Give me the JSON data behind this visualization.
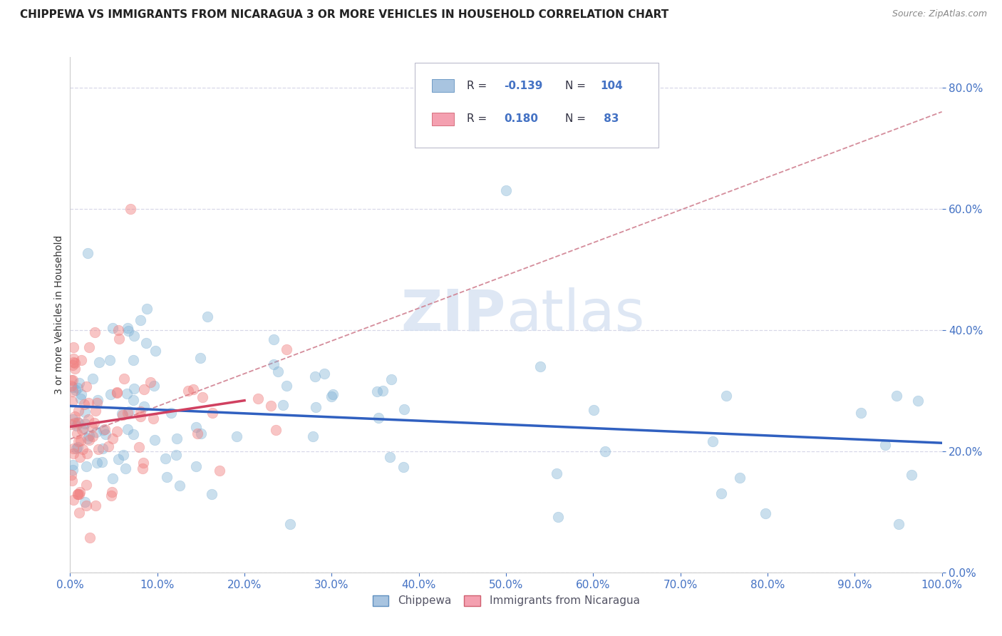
{
  "title": "CHIPPEWA VS IMMIGRANTS FROM NICARAGUA 3 OR MORE VEHICLES IN HOUSEHOLD CORRELATION CHART",
  "source_text": "Source: ZipAtlas.com",
  "ylabel": "3 or more Vehicles in Household",
  "watermark": "ZIPatlas",
  "blue_scatter_color": "#7bafd4",
  "pink_scatter_color": "#f08080",
  "blue_line_color": "#3060c0",
  "pink_line_color": "#d04060",
  "dashed_line_color": "#d08090",
  "background_color": "#ffffff",
  "grid_color": "#d8d8e8",
  "axis_color": "#4472c4",
  "xlim": [
    0.0,
    100.0
  ],
  "ylim": [
    0.0,
    85.0
  ],
  "yticks": [
    0.0,
    20.0,
    40.0,
    60.0,
    80.0
  ],
  "xticks": [
    0.0,
    10.0,
    20.0,
    30.0,
    40.0,
    50.0,
    60.0,
    70.0,
    80.0,
    90.0,
    100.0
  ],
  "chip_R": -0.139,
  "chip_N": 104,
  "nica_R": 0.18,
  "nica_N": 83
}
